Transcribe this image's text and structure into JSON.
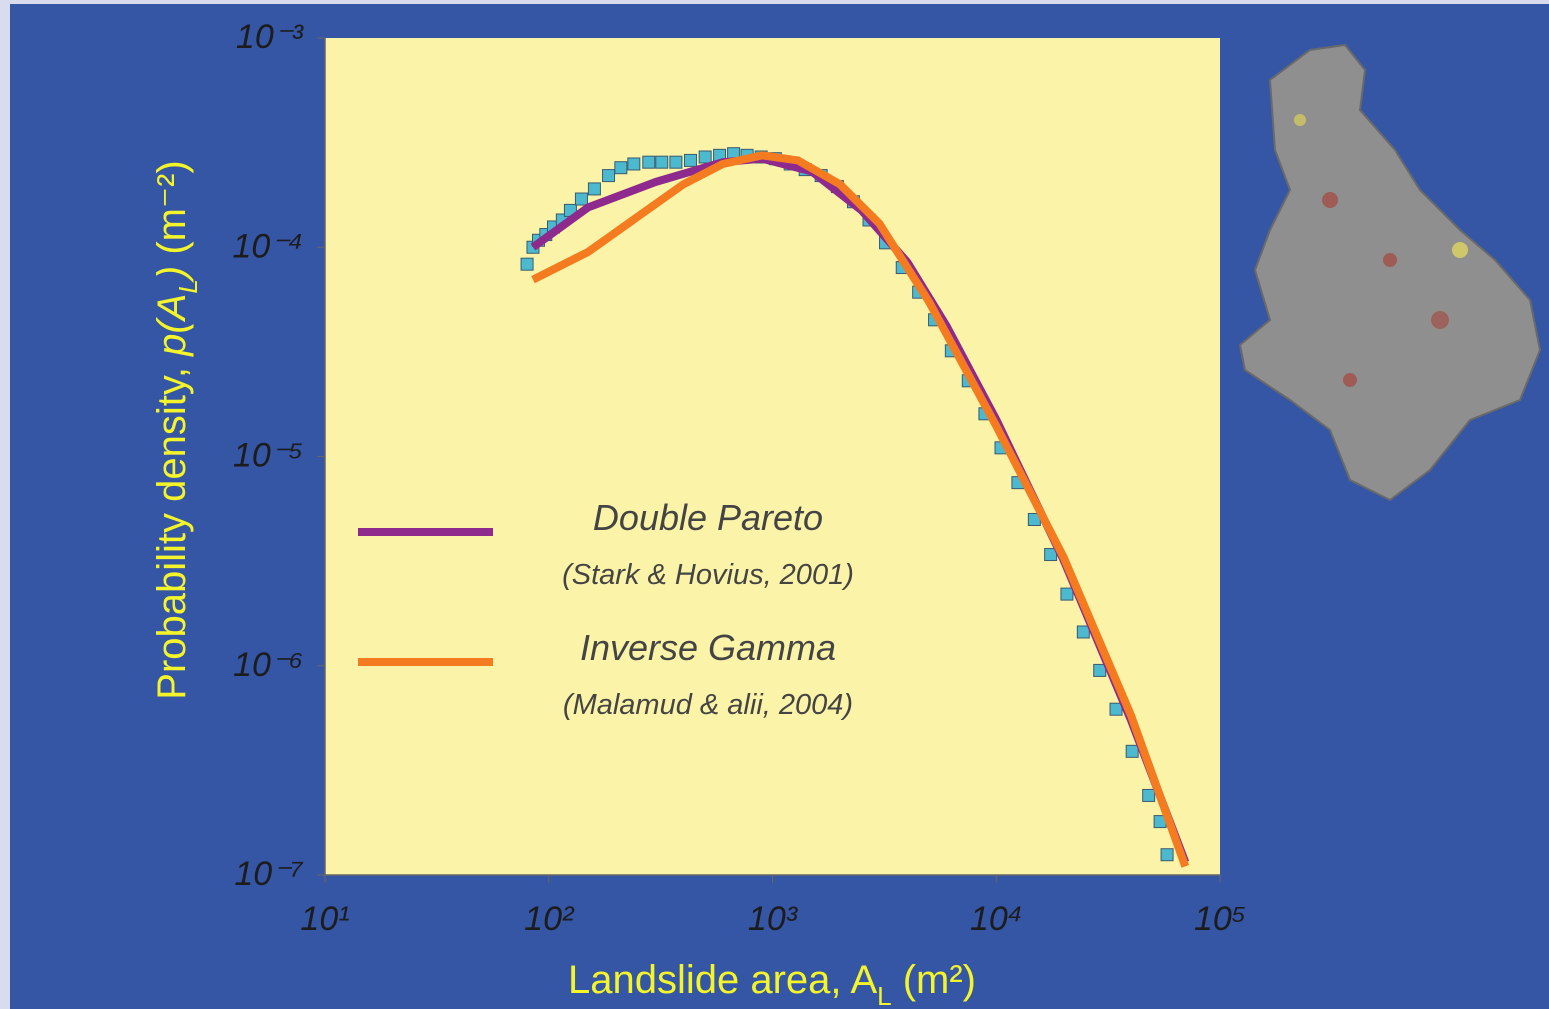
{
  "chart_data": {
    "type": "scatter",
    "xlabel": [
      "Landslide area, A",
      "L",
      " (m²)"
    ],
    "ylabel": [
      "Probability density, ",
      "p(A",
      "L",
      ")",
      " (m⁻²)"
    ],
    "xscale": "log",
    "yscale": "log",
    "xlim": [
      10,
      100000
    ],
    "ylim": [
      1e-07,
      0.001
    ],
    "xticks": [
      {
        "value": 10,
        "label": "10¹"
      },
      {
        "value": 100,
        "label": "10²"
      },
      {
        "value": 1000,
        "label": "10³"
      },
      {
        "value": 10000,
        "label": "10⁴"
      },
      {
        "value": 100000,
        "label": "10⁵"
      }
    ],
    "yticks": [
      {
        "value": 1e-07,
        "label": "10⁻⁷"
      },
      {
        "value": 1e-06,
        "label": "10⁻⁶"
      },
      {
        "value": 1e-05,
        "label": "10⁻⁵"
      },
      {
        "value": 0.0001,
        "label": "10⁻⁴"
      },
      {
        "value": 0.001,
        "label": "10⁻³"
      }
    ],
    "grid": false,
    "legend": "center left",
    "series": [
      {
        "type": "scatter",
        "color": "#4cb9cf",
        "x": [
          80,
          85,
          90,
          97,
          105,
          115,
          125,
          140,
          160,
          185,
          210,
          240,
          280,
          320,
          370,
          430,
          500,
          580,
          670,
          770,
          890,
          1030,
          1200,
          1400,
          1650,
          1950,
          2300,
          2700,
          3200,
          3800,
          4500,
          5300,
          6300,
          7500,
          8900,
          10500,
          12500,
          14800,
          17500,
          20700,
          24500,
          29000,
          34300,
          40500,
          48000,
          54000,
          58000
        ],
        "values": [
          8.3e-05,
          0.0001,
          0.000108,
          0.000115,
          0.000125,
          0.000135,
          0.00015,
          0.00017,
          0.00019,
          0.00022,
          0.00024,
          0.00025,
          0.000255,
          0.000255,
          0.000255,
          0.00026,
          0.00027,
          0.000275,
          0.00028,
          0.000275,
          0.00027,
          0.000265,
          0.00025,
          0.000235,
          0.00022,
          0.000195,
          0.000165,
          0.000135,
          0.000105,
          8e-05,
          6.1e-05,
          4.5e-05,
          3.2e-05,
          2.3e-05,
          1.6e-05,
          1.1e-05,
          7.5e-06,
          5e-06,
          3.4e-06,
          2.2e-06,
          1.45e-06,
          9.5e-07,
          6.2e-07,
          3.9e-07,
          2.4e-07,
          1.8e-07,
          1.25e-07
        ]
      },
      {
        "type": "line",
        "name": "Double Pareto",
        "citation": "(Stark & Hovius, 2001)",
        "color": "#8e2a8e",
        "x": [
          85,
          150,
          300,
          600,
          900,
          1500,
          2500,
          4000,
          6000,
          10000,
          20000,
          40000,
          70000
        ],
        "values": [
          0.0001,
          0.000155,
          0.000205,
          0.000255,
          0.000265,
          0.00023,
          0.00015,
          8.5e-05,
          4.2e-05,
          1.5e-05,
          3.2e-06,
          5.5e-07,
          1.15e-07
        ]
      },
      {
        "type": "line",
        "name": "Inverse Gamma",
        "citation": "(Malamud & alii, 2004)",
        "color": "#f47b20",
        "x": [
          85,
          150,
          250,
          400,
          600,
          900,
          1300,
          2000,
          3000,
          5000,
          10000,
          20000,
          40000,
          70000
        ],
        "values": [
          7e-05,
          9.5e-05,
          0.00014,
          0.0002,
          0.00025,
          0.000275,
          0.00026,
          0.0002,
          0.00013,
          5.5e-05,
          1.4e-05,
          3.3e-06,
          5.8e-07,
          1.1e-07
        ]
      }
    ]
  }
}
